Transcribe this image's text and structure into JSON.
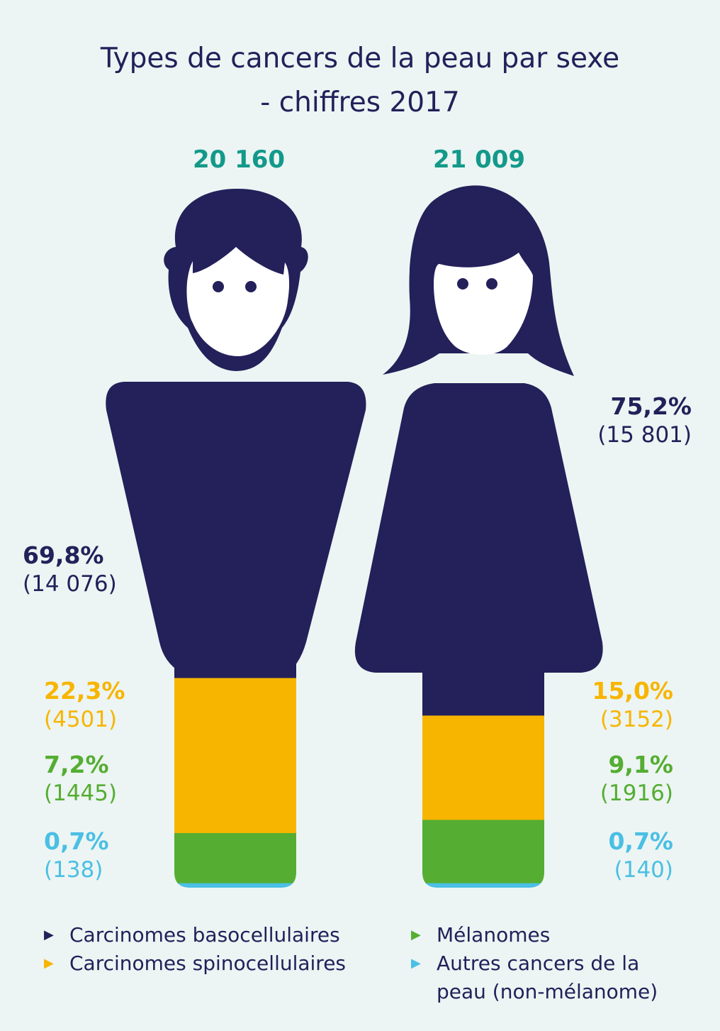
{
  "title_line1": "Types de cancers de la peau par sexe",
  "title_line2": "- chiffres 2017",
  "colors": {
    "navy": "#23205a",
    "yellow": "#f7b500",
    "green": "#55ad32",
    "blue": "#4bbfe4",
    "teal": "#13998a",
    "background": "#ecf5f3"
  },
  "chart_data": {
    "type": "bar",
    "categories": [
      "Hommes",
      "Femmes"
    ],
    "totals": [
      "20 160",
      "21 009"
    ],
    "series": [
      {
        "name": "Carcinomes basocellulaires",
        "values": [
          69.8,
          75.2
        ],
        "counts": [
          14076,
          15801
        ],
        "pct_labels": [
          "69,8%",
          "75,2%"
        ],
        "count_labels": [
          "(14 076)",
          "(15 801)"
        ]
      },
      {
        "name": "Carcinomes spinocellulaires",
        "values": [
          22.3,
          15.0
        ],
        "counts": [
          4501,
          3152
        ],
        "pct_labels": [
          "22,3%",
          "15,0%"
        ],
        "count_labels": [
          "(4501)",
          "(3152)"
        ]
      },
      {
        "name": "Mélanomes",
        "values": [
          7.2,
          9.1
        ],
        "counts": [
          1445,
          1916
        ],
        "pct_labels": [
          "7,2%",
          "9,1%"
        ],
        "count_labels": [
          "(1445)",
          "(1916)"
        ]
      },
      {
        "name": "Autres cancers de la peau (non-mélanome)",
        "values": [
          0.7,
          0.7
        ],
        "counts": [
          138,
          140
        ],
        "pct_labels": [
          "0,7%",
          "0,7%"
        ],
        "count_labels": [
          "(138)",
          "(140)"
        ]
      }
    ]
  },
  "legend": [
    {
      "label": "Carcinomes basocellulaires",
      "color": "#23205a"
    },
    {
      "label": "Carcinomes spinocellulaires",
      "color": "#f7b500"
    },
    {
      "label": "Mélanomes",
      "color": "#55ad32"
    },
    {
      "label": "Autres cancers de la peau (non-mélanome)",
      "color": "#4bbfe4"
    }
  ]
}
